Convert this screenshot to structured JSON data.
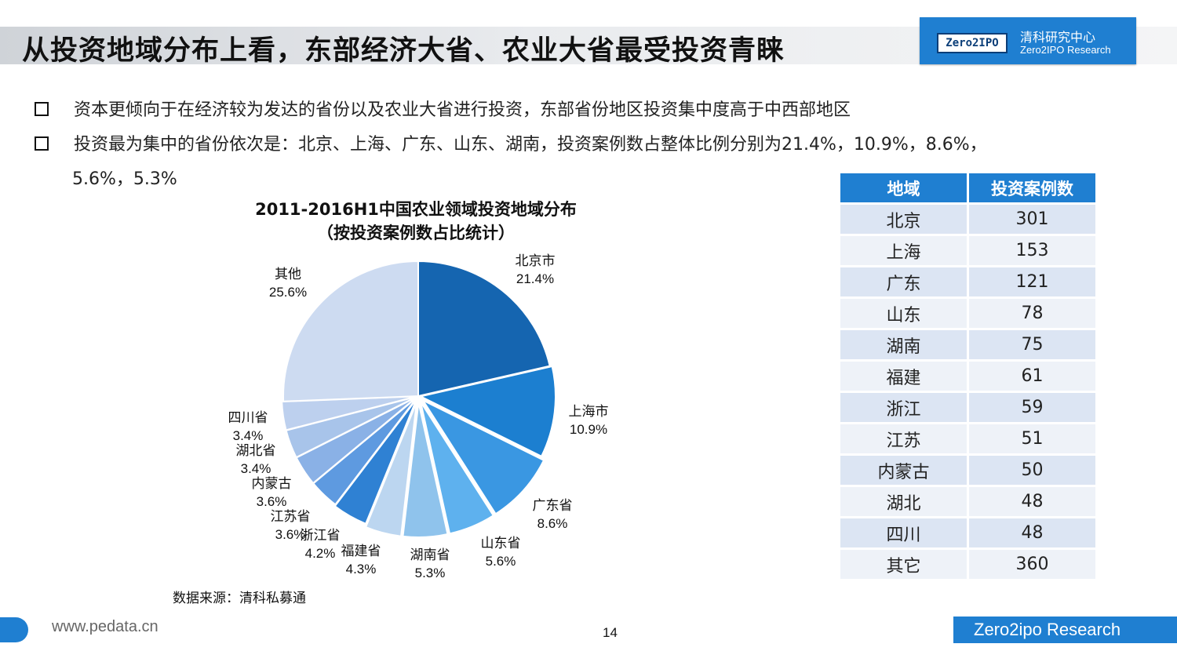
{
  "header": {
    "title": "从投资地域分布上看，东部经济大省、农业大省最受投资青睐",
    "logo_badge": "Zero2IPO",
    "logo_cn": "清科研究中心",
    "logo_en": "Zero2IPO Research"
  },
  "bullets": [
    "资本更倾向于在经济较为发达的省份以及农业大省进行投资，东部省份地区投资集中度高于中西部地区",
    "投资最为集中的省份依次是：北京、上海、广东、山东、湖南，投资案例数占整体比例分别为21.4%，10.9%，8.6%，"
  ],
  "bullet_cont": "5.6%，5.3%",
  "chart_data": {
    "type": "pie",
    "title": "2011-2016H1中国农业领域投资地域分布",
    "subtitle": "（按投资案例数占比统计）",
    "slices": [
      {
        "name": "北京市",
        "pct_label": "21.4%",
        "value": 21.4,
        "color": "#1565b0"
      },
      {
        "name": "上海市",
        "pct_label": "10.9%",
        "value": 10.9,
        "color": "#1c7fd0"
      },
      {
        "name": "广东省",
        "pct_label": "8.6%",
        "value": 8.6,
        "color": "#3a97e2"
      },
      {
        "name": "山东省",
        "pct_label": "5.6%",
        "value": 5.6,
        "color": "#5eb1ee"
      },
      {
        "name": "湖南省",
        "pct_label": "5.3%",
        "value": 5.3,
        "color": "#8fc3ec"
      },
      {
        "name": "福建省",
        "pct_label": "4.3%",
        "value": 4.3,
        "color": "#bcd6f0"
      },
      {
        "name": "浙江省",
        "pct_label": "4.2%",
        "value": 4.2,
        "color": "#2f81d3"
      },
      {
        "name": "江苏省",
        "pct_label": "3.6%",
        "value": 3.6,
        "color": "#5e9ae0"
      },
      {
        "name": "内蒙古",
        "pct_label": "3.6%",
        "value": 3.6,
        "color": "#8ab1e6"
      },
      {
        "name": "湖北省",
        "pct_label": "3.4%",
        "value": 3.4,
        "color": "#a8c4ea"
      },
      {
        "name": "四川省",
        "pct_label": "3.4%",
        "value": 3.4,
        "color": "#bdd0ee"
      },
      {
        "name": "其他",
        "pct_label": "25.6%",
        "value": 25.6,
        "color": "#cddbf1"
      }
    ]
  },
  "source": "数据来源：清科私募通",
  "table": {
    "headers": [
      "地域",
      "投资案例数"
    ],
    "rows": [
      [
        "北京",
        "301"
      ],
      [
        "上海",
        "153"
      ],
      [
        "广东",
        "121"
      ],
      [
        "山东",
        "78"
      ],
      [
        "湖南",
        "75"
      ],
      [
        "福建",
        "61"
      ],
      [
        "浙江",
        "59"
      ],
      [
        "江苏",
        "51"
      ],
      [
        "内蒙古",
        "50"
      ],
      [
        "湖北",
        "48"
      ],
      [
        "四川",
        "48"
      ],
      [
        "其它",
        "360"
      ]
    ]
  },
  "footer": {
    "url": "www.pedata.cn",
    "page": "14",
    "brand": "Zero2ipo Research"
  }
}
